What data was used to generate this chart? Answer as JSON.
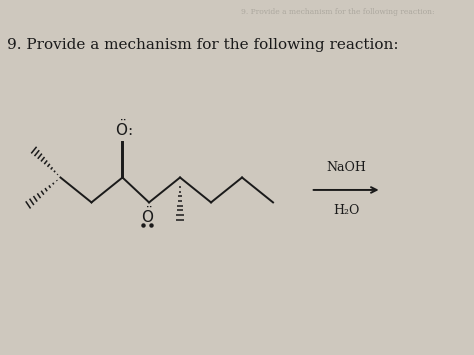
{
  "title": "9. Provide a mechanism for the following reaction:",
  "title_fontsize": 11.0,
  "bg_color": "#cec8be",
  "text_color": "#1a1a1a",
  "reagent_top": "NaOH",
  "reagent_bottom": "H₂O",
  "watermark": "9. Provide a mechanism for the following reaction:"
}
